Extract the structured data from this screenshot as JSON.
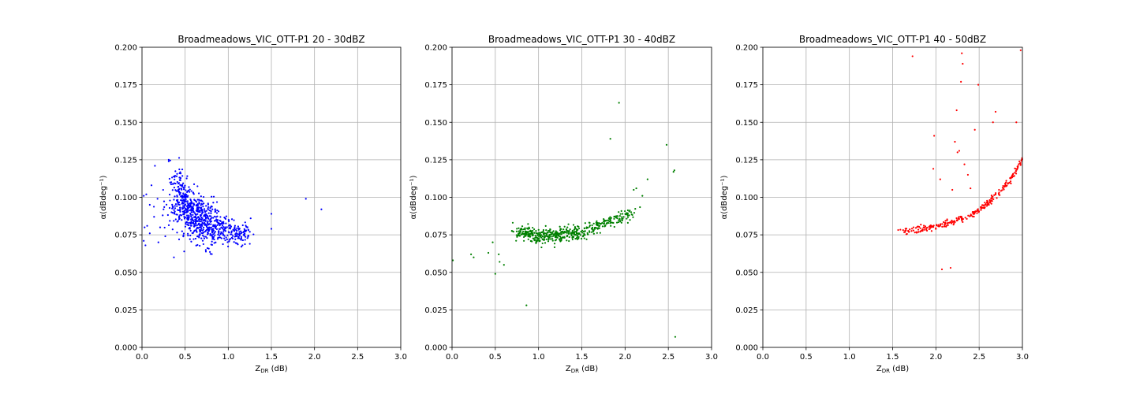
{
  "chart_data": [
    {
      "type": "scatter",
      "title": "Broadmeadows_VIC_OTT-P1 20 - 30dBZ",
      "xlabel_main": "Z",
      "xlabel_sub": "DR",
      "xlabel_unit": " (dB)",
      "ylabel": "α(dBdeg⁻¹)",
      "xlim": [
        0.0,
        3.0
      ],
      "ylim": [
        0.0,
        0.2
      ],
      "xticks": [
        "0.0",
        "0.5",
        "1.0",
        "1.5",
        "2.0",
        "2.5",
        "3.0"
      ],
      "yticks": [
        "0.000",
        "0.025",
        "0.050",
        "0.075",
        "0.100",
        "0.125",
        "0.150",
        "0.175",
        "0.200"
      ],
      "grid": true,
      "color": "#0000ff",
      "clusters": [
        {
          "x0": 0.4,
          "y0": 0.112,
          "x1": 0.55,
          "y1": 0.09,
          "sx": 0.04,
          "sy": 0.007,
          "n": 180
        },
        {
          "x0": 0.55,
          "y0": 0.092,
          "x1": 0.85,
          "y1": 0.08,
          "sx": 0.06,
          "sy": 0.008,
          "n": 320
        },
        {
          "x0": 0.85,
          "y0": 0.08,
          "x1": 1.22,
          "y1": 0.075,
          "sx": 0.04,
          "sy": 0.005,
          "n": 180
        },
        {
          "x0": 0.3,
          "y0": 0.095,
          "x1": 0.8,
          "y1": 0.076,
          "sx": 0.06,
          "sy": 0.007,
          "n": 110
        }
      ],
      "points": [
        [
          0.02,
          0.101
        ],
        [
          0.05,
          0.102
        ],
        [
          0.03,
          0.08
        ],
        [
          0.06,
          0.081
        ],
        [
          0.02,
          0.071
        ],
        [
          0.04,
          0.068
        ],
        [
          0.09,
          0.076
        ],
        [
          0.11,
          0.108
        ],
        [
          0.15,
          0.121
        ],
        [
          0.09,
          0.095
        ],
        [
          0.14,
          0.087
        ],
        [
          0.18,
          0.099
        ],
        [
          0.21,
          0.08
        ],
        [
          0.25,
          0.092
        ],
        [
          0.19,
          0.07
        ],
        [
          0.27,
          0.074
        ],
        [
          0.31,
          0.125
        ],
        [
          0.31,
          0.124
        ],
        [
          0.37,
          0.06
        ],
        [
          0.43,
          0.072
        ],
        [
          1.25,
          0.069
        ],
        [
          1.26,
          0.086
        ],
        [
          1.5,
          0.089
        ],
        [
          1.5,
          0.079
        ],
        [
          1.9,
          0.099
        ],
        [
          2.08,
          0.092
        ]
      ]
    },
    {
      "type": "scatter",
      "title": "Broadmeadows_VIC_OTT-P1 30 - 40dBZ",
      "xlabel_main": "Z",
      "xlabel_sub": "DR",
      "xlabel_unit": " (dB)",
      "ylabel": "α(dBdeg⁻¹)",
      "xlim": [
        0.0,
        3.0
      ],
      "ylim": [
        0.0,
        0.2
      ],
      "xticks": [
        "0.0",
        "0.5",
        "1.0",
        "1.5",
        "2.0",
        "2.5",
        "3.0"
      ],
      "yticks": [
        "0.000",
        "0.025",
        "0.050",
        "0.075",
        "0.100",
        "0.125",
        "0.150",
        "0.175",
        "0.200"
      ],
      "grid": true,
      "color": "#008000",
      "clusters": [
        {
          "x0": 0.75,
          "y0": 0.077,
          "x1": 1.05,
          "y1": 0.074,
          "sx": 0.05,
          "sy": 0.0025,
          "n": 150
        },
        {
          "x0": 1.05,
          "y0": 0.074,
          "x1": 1.55,
          "y1": 0.077,
          "sx": 0.06,
          "sy": 0.0025,
          "n": 220
        },
        {
          "x0": 1.55,
          "y0": 0.078,
          "x1": 2.08,
          "y1": 0.09,
          "sx": 0.04,
          "sy": 0.0018,
          "n": 130
        }
      ],
      "points": [
        [
          0.01,
          0.058
        ],
        [
          0.22,
          0.062
        ],
        [
          0.25,
          0.06
        ],
        [
          0.42,
          0.063
        ],
        [
          0.47,
          0.07
        ],
        [
          0.5,
          0.049
        ],
        [
          0.54,
          0.062
        ],
        [
          0.55,
          0.057
        ],
        [
          0.6,
          0.055
        ],
        [
          0.86,
          0.028
        ],
        [
          1.83,
          0.139
        ],
        [
          1.93,
          0.163
        ],
        [
          2.1,
          0.105
        ],
        [
          2.13,
          0.106
        ],
        [
          2.2,
          0.101
        ],
        [
          2.26,
          0.112
        ],
        [
          2.48,
          0.135
        ],
        [
          2.56,
          0.117
        ],
        [
          2.57,
          0.118
        ],
        [
          2.58,
          0.007
        ]
      ]
    },
    {
      "type": "scatter",
      "title": "Broadmeadows_VIC_OTT-P1 40 - 50dBZ",
      "xlabel_main": "Z",
      "xlabel_sub": "DR",
      "xlabel_unit": " (dB)",
      "ylabel": "α(dBdeg⁻¹)",
      "xlim": [
        0.0,
        3.0
      ],
      "ylim": [
        0.0,
        0.2
      ],
      "xticks": [
        "0.0",
        "0.5",
        "1.0",
        "1.5",
        "2.0",
        "2.5",
        "3.0"
      ],
      "yticks": [
        "0.000",
        "0.025",
        "0.050",
        "0.075",
        "0.100",
        "0.125",
        "0.150",
        "0.175",
        "0.200"
      ],
      "grid": true,
      "color": "#ff0000",
      "curve": {
        "a": 0.0772,
        "b": 0.0138,
        "c": 2.2,
        "x_start": 1.55,
        "x_end": 3.0,
        "n": 260,
        "jitter": 0.0012
      },
      "points": [
        [
          1.73,
          0.194
        ],
        [
          1.97,
          0.119
        ],
        [
          1.98,
          0.141
        ],
        [
          2.05,
          0.112
        ],
        [
          2.07,
          0.052
        ],
        [
          2.17,
          0.053
        ],
        [
          2.19,
          0.105
        ],
        [
          2.22,
          0.137
        ],
        [
          2.24,
          0.158
        ],
        [
          2.25,
          0.13
        ],
        [
          2.27,
          0.131
        ],
        [
          2.29,
          0.177
        ],
        [
          2.3,
          0.196
        ],
        [
          2.31,
          0.189
        ],
        [
          2.33,
          0.122
        ],
        [
          2.37,
          0.115
        ],
        [
          2.4,
          0.106
        ],
        [
          2.45,
          0.145
        ],
        [
          2.49,
          0.175
        ],
        [
          2.66,
          0.15
        ],
        [
          2.69,
          0.157
        ],
        [
          2.93,
          0.15
        ],
        [
          2.98,
          0.198
        ]
      ]
    }
  ]
}
